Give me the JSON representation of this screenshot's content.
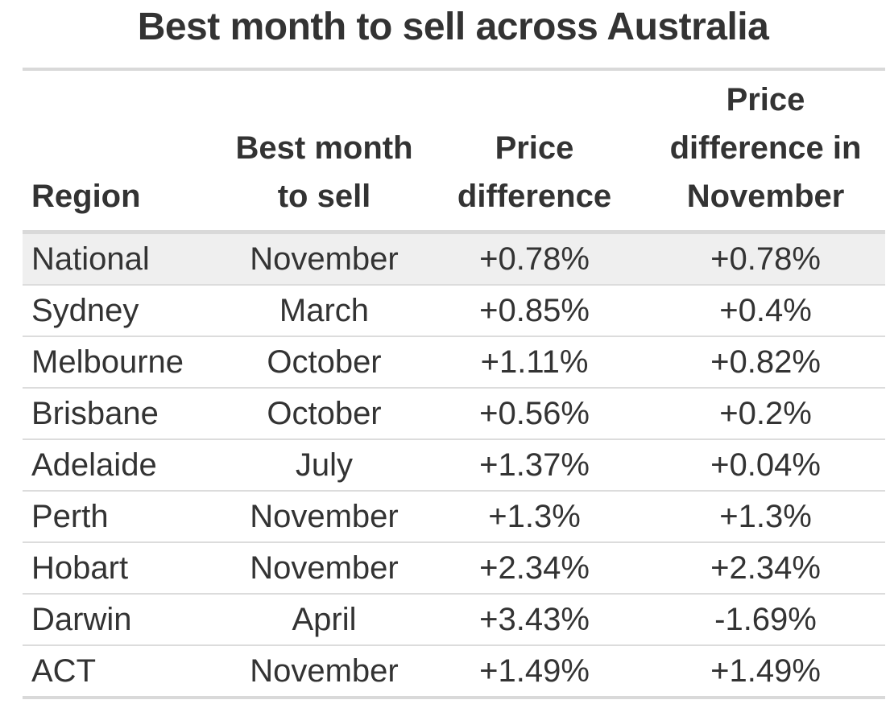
{
  "chart_data": {
    "type": "table",
    "title": "Best month to sell across Australia",
    "columns": [
      "Region",
      "Best month to sell",
      "Price difference",
      "Price difference in November"
    ],
    "rows": [
      {
        "region": "National",
        "best_month": "November",
        "price_diff": "+0.78%",
        "price_diff_nov": "+0.78%"
      },
      {
        "region": "Sydney",
        "best_month": "March",
        "price_diff": "+0.85%",
        "price_diff_nov": "+0.4%"
      },
      {
        "region": "Melbourne",
        "best_month": "October",
        "price_diff": "+1.11%",
        "price_diff_nov": "+0.82%"
      },
      {
        "region": "Brisbane",
        "best_month": "October",
        "price_diff": "+0.56%",
        "price_diff_nov": "+0.2%"
      },
      {
        "region": "Adelaide",
        "best_month": "July",
        "price_diff": "+1.37%",
        "price_diff_nov": "+0.04%"
      },
      {
        "region": "Perth",
        "best_month": "November",
        "price_diff": "+1.3%",
        "price_diff_nov": "+1.3%"
      },
      {
        "region": "Hobart",
        "best_month": "November",
        "price_diff": "+2.34%",
        "price_diff_nov": "+2.34%"
      },
      {
        "region": "Darwin",
        "best_month": "April",
        "price_diff": "+3.43%",
        "price_diff_nov": "-1.69%"
      },
      {
        "region": "ACT",
        "best_month": "November",
        "price_diff": "+1.49%",
        "price_diff_nov": "+1.49%"
      }
    ],
    "highlighted_row": 0,
    "colors": {
      "text": "#333333",
      "highlight_row": "#efefef",
      "rule": "#d9d9d9"
    }
  }
}
